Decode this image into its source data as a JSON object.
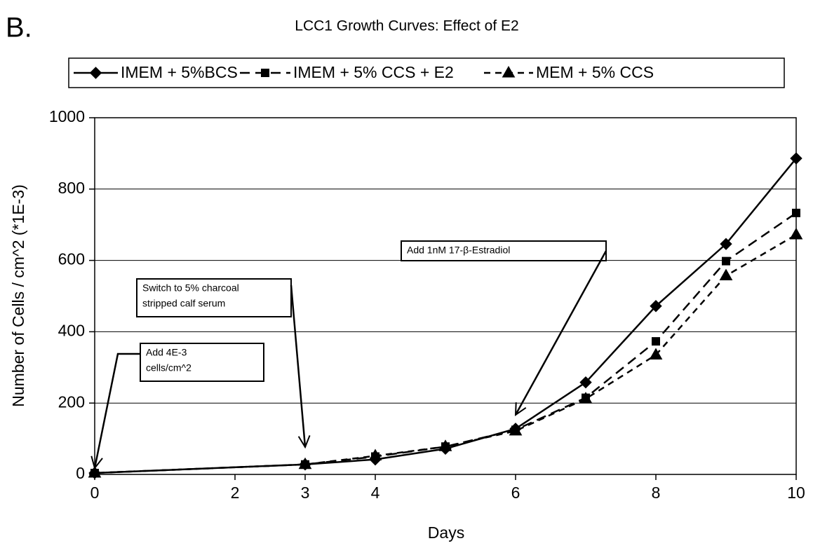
{
  "panel_label": "B.",
  "chart_data": {
    "type": "line",
    "title": "LCC1 Growth Curves: Effect of E2",
    "x_label": "Days",
    "y_label": "Number of Cells / cm^2 (*1E-3)",
    "x": [
      0,
      3,
      4,
      5,
      6,
      7,
      8,
      9,
      10
    ],
    "xlim": [
      0,
      10
    ],
    "xticks": [
      0,
      2,
      3,
      4,
      6,
      8,
      10
    ],
    "ylim": [
      0,
      1000
    ],
    "yticks": [
      0,
      200,
      400,
      600,
      800,
      1000
    ],
    "grid": true,
    "legend": "top",
    "series": [
      {
        "name": "IMEM + 5%BCS",
        "color": "#000000",
        "dash": "solid",
        "marker": "diamond",
        "values": [
          4,
          28,
          42,
          72,
          128,
          258,
          472,
          646,
          886
        ]
      },
      {
        "name": "IMEM + 5% CCS + E2",
        "color": "#000000",
        "dash": "dashed",
        "marker": "square",
        "values": [
          4,
          28,
          50,
          78,
          125,
          215,
          373,
          598,
          733
        ]
      },
      {
        "name": "MEM + 5% CCS",
        "color": "#000000",
        "dash": "dotted",
        "marker": "triangle",
        "values": [
          4,
          28,
          52,
          78,
          122,
          212,
          335,
          557,
          672
        ]
      }
    ],
    "annotations": [
      {
        "lines": [
          "Add 4E-3",
          "cells/cm^2"
        ]
      },
      {
        "lines": [
          "Switch to 5% charcoal",
          "stripped calf serum"
        ]
      },
      {
        "lines": [
          "Add 1nM 17-β-Estradiol"
        ]
      }
    ]
  }
}
